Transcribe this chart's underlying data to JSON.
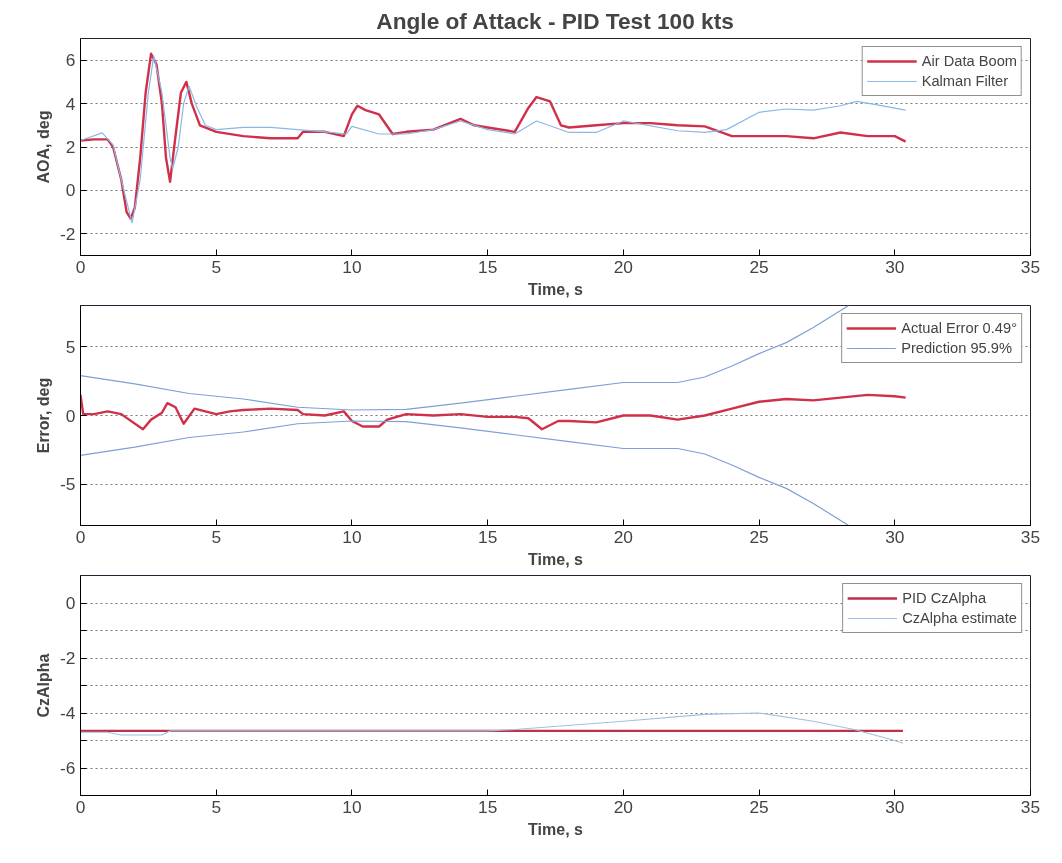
{
  "chart_data": [
    {
      "type": "line",
      "title": "Angle of Attack - PID Test 100 kts",
      "xlabel": "Time, s",
      "ylabel": "AOA, deg",
      "xlim": [
        0,
        35
      ],
      "xticks": [
        0,
        5,
        10,
        15,
        20,
        25,
        30,
        35
      ],
      "ylim": [
        -3,
        7
      ],
      "yticks": [
        -2,
        0,
        2,
        4,
        6
      ],
      "grid": "y",
      "legend": "top right",
      "line_style": "solid",
      "marker": "none",
      "series": [
        {
          "name": "Air Data Boom",
          "color": "#d0304a",
          "x": [
            0,
            0.5,
            1.0,
            1.2,
            1.5,
            1.7,
            1.85,
            2.0,
            2.2,
            2.4,
            2.6,
            2.8,
            3.0,
            3.15,
            3.3,
            3.5,
            3.7,
            3.9,
            4.1,
            4.4,
            5,
            6,
            7,
            8,
            8.2,
            9,
            9.7,
            10.0,
            10.2,
            10.5,
            11,
            11.5,
            12,
            13,
            14,
            14.5,
            15,
            16,
            16.5,
            16.8,
            17.3,
            17.7,
            18,
            19,
            20,
            21,
            22,
            23,
            24,
            25,
            26,
            27,
            28,
            29,
            30,
            30.4
          ],
          "values": [
            2.3,
            2.35,
            2.35,
            2.0,
            0.5,
            -1.0,
            -1.3,
            -0.8,
            1.5,
            4.5,
            6.3,
            5.8,
            4.0,
            1.5,
            0.4,
            2.5,
            4.5,
            5.0,
            4.0,
            3.0,
            2.7,
            2.5,
            2.4,
            2.4,
            2.7,
            2.7,
            2.5,
            3.5,
            3.9,
            3.7,
            3.5,
            2.6,
            2.7,
            2.8,
            3.3,
            3.0,
            2.9,
            2.7,
            3.8,
            4.3,
            4.1,
            3.0,
            2.9,
            3.0,
            3.1,
            3.1,
            3.0,
            2.95,
            2.5,
            2.5,
            2.5,
            2.4,
            2.67,
            2.5,
            2.5,
            2.25
          ]
        },
        {
          "name": "Kalman Filter",
          "color": "#8ab8e6",
          "x": [
            0,
            0.8,
            1.2,
            1.5,
            1.9,
            2.2,
            2.5,
            2.7,
            3.0,
            3.3,
            3.4,
            3.6,
            3.8,
            4.0,
            4.3,
            4.6,
            5,
            6,
            7,
            8,
            9,
            9.8,
            10,
            11,
            12,
            13,
            14,
            15,
            16,
            16.8,
            18,
            19,
            20,
            22,
            23,
            23.8,
            25,
            26,
            27,
            28,
            28.6,
            29.3,
            30.4
          ],
          "values": [
            2.3,
            2.65,
            2.1,
            0.5,
            -1.5,
            0.5,
            4.5,
            6.2,
            4.5,
            1.5,
            1.0,
            2.0,
            4.0,
            4.8,
            3.8,
            3.0,
            2.8,
            2.9,
            2.9,
            2.8,
            2.7,
            2.6,
            2.95,
            2.6,
            2.6,
            2.8,
            3.2,
            2.8,
            2.6,
            3.2,
            2.67,
            2.67,
            3.2,
            2.75,
            2.67,
            2.8,
            3.6,
            3.75,
            3.7,
            3.9,
            4.1,
            3.95,
            3.7
          ]
        }
      ]
    },
    {
      "type": "line",
      "xlabel": "Time, s",
      "ylabel": "Error, deg",
      "xlim": [
        0,
        35
      ],
      "xticks": [
        0,
        5,
        10,
        15,
        20,
        25,
        30,
        35
      ],
      "ylim": [
        -8,
        8
      ],
      "yticks": [
        -5,
        0,
        5
      ],
      "grid": "y",
      "legend": "top right",
      "line_style": "solid",
      "marker": "none",
      "series": [
        {
          "name": "Actual Error 0.49°",
          "color": "#d0304a",
          "x": [
            0,
            0.1,
            0.5,
            1,
            1.5,
            2.3,
            2.6,
            3,
            3.2,
            3.5,
            3.8,
            4.2,
            5,
            5.5,
            6,
            7,
            8,
            8.2,
            9,
            9.7,
            10,
            10.4,
            11,
            11.3,
            12,
            13,
            14,
            15,
            16,
            16.5,
            17,
            17.6,
            18,
            19,
            20,
            21,
            22,
            23,
            24,
            25,
            26,
            27,
            28,
            29,
            30,
            30.4
          ],
          "values": [
            1.5,
            0.1,
            0.1,
            0.3,
            0.1,
            -1.0,
            -0.3,
            0.2,
            0.9,
            0.6,
            -0.6,
            0.5,
            0.1,
            0.3,
            0.4,
            0.5,
            0.4,
            0.1,
            0,
            0.3,
            -0.4,
            -0.8,
            -0.8,
            -0.3,
            0.1,
            0,
            0.1,
            -0.1,
            -0.1,
            -0.2,
            -1.0,
            -0.4,
            -0.4,
            -0.5,
            0,
            0,
            -0.3,
            0,
            0.5,
            1.0,
            1.2,
            1.1,
            1.3,
            1.5,
            1.4,
            1.3
          ]
        },
        {
          "name": "Prediction 95.9%",
          "color": "#7f9fd6",
          "x": [
            0,
            2,
            4,
            6,
            8,
            10,
            12,
            14,
            16,
            18,
            20,
            21,
            22,
            23,
            24,
            25,
            26,
            27,
            28.3
          ],
          "values": [
            2.9,
            2.3,
            1.6,
            1.2,
            0.6,
            0.4,
            0.45,
            0.9,
            1.4,
            1.9,
            2.4,
            2.4,
            2.4,
            2.8,
            3.6,
            4.5,
            5.3,
            6.4,
            8.0
          ]
        },
        {
          "color": "#7f9fd6",
          "x": [
            0,
            2,
            4,
            6,
            8,
            10,
            12,
            14,
            16,
            18,
            20,
            21,
            22,
            23,
            24,
            25,
            26,
            27,
            28.3
          ],
          "values": [
            -2.9,
            -2.3,
            -1.6,
            -1.2,
            -0.6,
            -0.4,
            -0.45,
            -0.9,
            -1.4,
            -1.9,
            -2.4,
            -2.4,
            -2.4,
            -2.8,
            -3.6,
            -4.5,
            -5.3,
            -6.4,
            -8.0
          ]
        }
      ]
    },
    {
      "type": "line",
      "xlabel": "Time, s",
      "ylabel": "CzAlpha",
      "xlim": [
        0,
        35
      ],
      "xticks": [
        0,
        5,
        10,
        15,
        20,
        25,
        30,
        35
      ],
      "ylim": [
        -7,
        1
      ],
      "yticks": [
        {
          "value": -7,
          "label": null
        },
        -6,
        {
          "value": -5,
          "label": null
        },
        -4,
        {
          "value": -3,
          "label": null
        },
        -2,
        {
          "value": -1,
          "label": null
        },
        0
      ],
      "grid": "y",
      "legend": "top right",
      "line_style": "solid",
      "marker": "none",
      "series": [
        {
          "name": "PID CzAlpha",
          "color": "#c0304a",
          "x": [
            0,
            30.3
          ],
          "values": [
            -4.65,
            -4.65
          ]
        },
        {
          "name": "CzAlpha estimate",
          "color": "#9fc0e0",
          "x": [
            0,
            1,
            1.5,
            3,
            3.3,
            5,
            10,
            15,
            16,
            20,
            23,
            25,
            27,
            28.5,
            30,
            30.3
          ],
          "values": [
            -4.7,
            -4.7,
            -4.8,
            -4.8,
            -4.65,
            -4.65,
            -4.65,
            -4.65,
            -4.6,
            -4.3,
            -4.05,
            -4.0,
            -4.3,
            -4.6,
            -5.0,
            -5.1
          ]
        }
      ]
    }
  ]
}
